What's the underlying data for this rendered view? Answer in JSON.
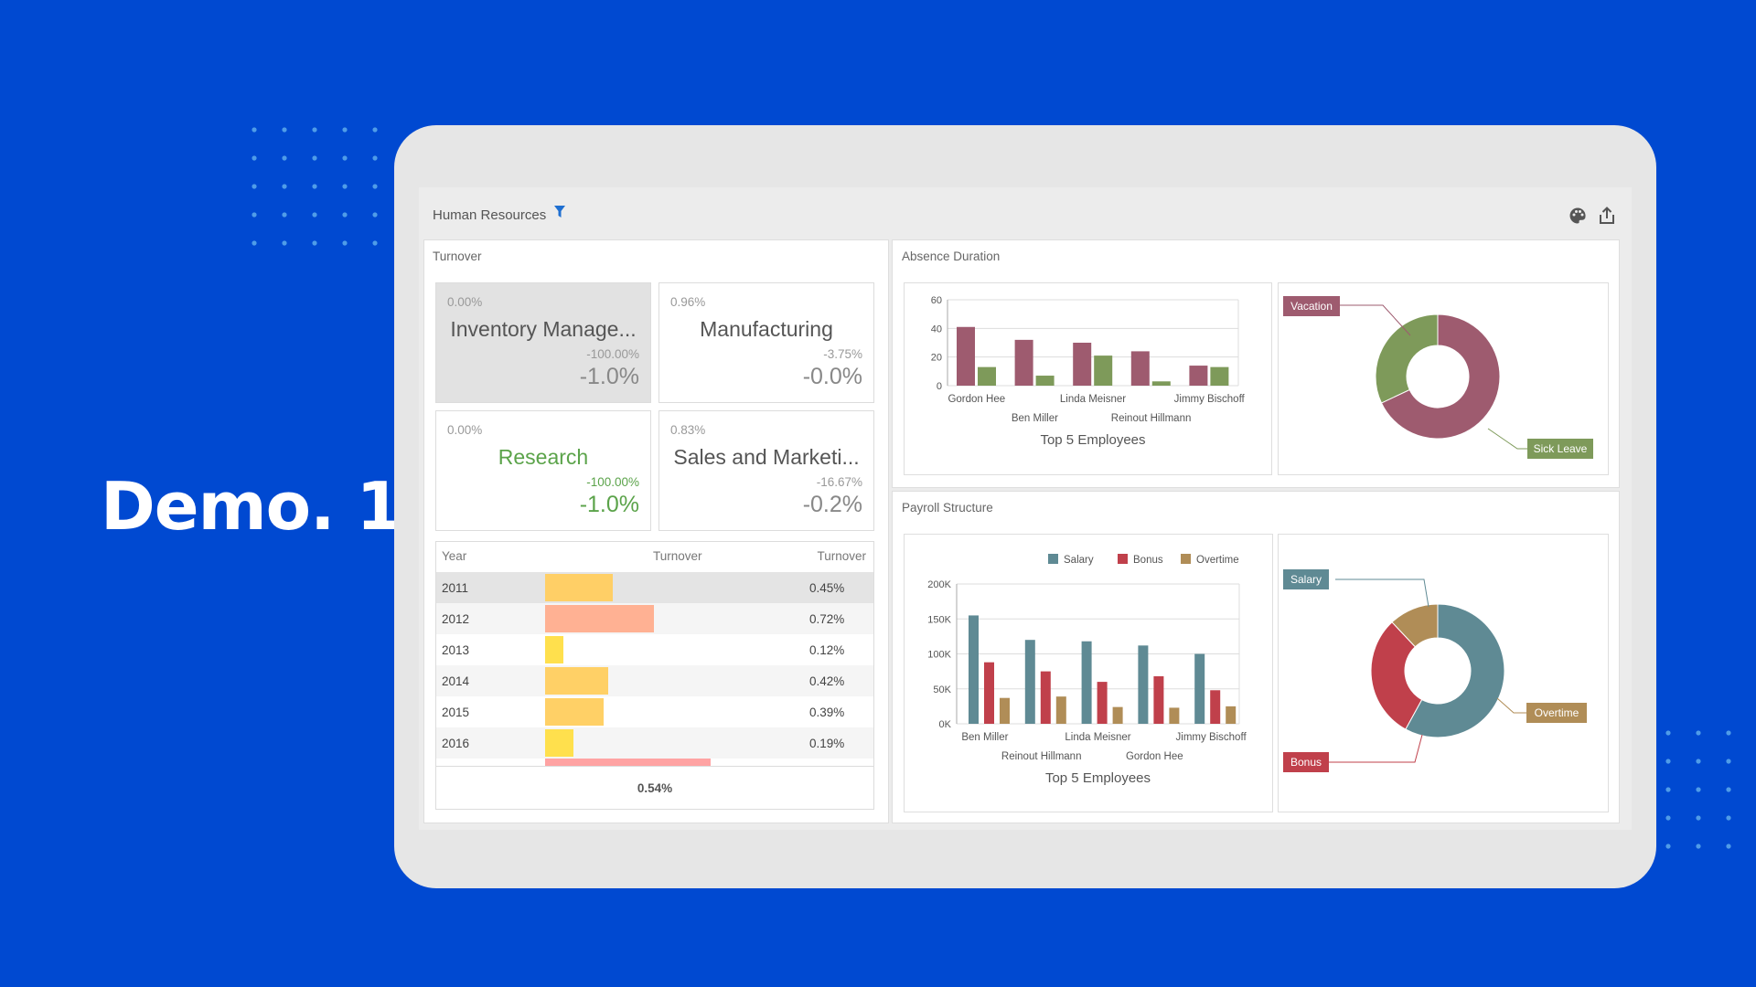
{
  "banner": {
    "title": "Demo. 1"
  },
  "dashboard": {
    "title": "Human Resources",
    "icons": {
      "filter": "filter-icon",
      "palette": "palette-icon",
      "export": "export-icon"
    },
    "turnover": {
      "title": "Turnover",
      "cards": [
        {
          "top": "0.00%",
          "name": "Inventory Manage...",
          "sub": "-100.00%",
          "big": "-1.0%",
          "selected": true,
          "accent": "#555555"
        },
        {
          "top": "0.96%",
          "name": "Manufacturing",
          "sub": "-3.75%",
          "big": "-0.0%",
          "selected": false,
          "accent": "#555555"
        },
        {
          "top": "0.00%",
          "name": "Research",
          "sub": "-100.00%",
          "big": "-1.0%",
          "selected": false,
          "accent": "#5ba34a"
        },
        {
          "top": "0.83%",
          "name": "Sales and Marketi...",
          "sub": "-16.67%",
          "big": "-0.2%",
          "selected": false,
          "accent": "#555555"
        }
      ],
      "grid": {
        "headers": [
          "Year",
          "Turnover",
          "Turnover"
        ],
        "rows": [
          {
            "year": "2011",
            "value": "0.45%",
            "bar": 0.45,
            "color": "#ffcf66"
          },
          {
            "year": "2012",
            "value": "0.72%",
            "bar": 0.72,
            "color": "#ffb193"
          },
          {
            "year": "2013",
            "value": "0.12%",
            "bar": 0.12,
            "color": "#ffe04d"
          },
          {
            "year": "2014",
            "value": "0.42%",
            "bar": 0.42,
            "color": "#ffd066"
          },
          {
            "year": "2015",
            "value": "0.39%",
            "bar": 0.39,
            "color": "#ffd066"
          },
          {
            "year": "2016",
            "value": "0.19%",
            "bar": 0.19,
            "color": "#ffe04d"
          }
        ],
        "total": "0.54%"
      }
    },
    "absence": {
      "title": "Absence Duration"
    },
    "payroll": {
      "title": "Payroll Structure"
    }
  },
  "chart_data": [
    {
      "type": "bar",
      "title": "Top 5 Employees",
      "categories": [
        "Gordon Hee",
        "Ben Miller",
        "Linda Meisner",
        "Reinout Hillmann",
        "Jimmy Bischoff"
      ],
      "series": [
        {
          "values": [
            41,
            32,
            30,
            24,
            14
          ],
          "color": "#9e5b6f"
        },
        {
          "values": [
            13,
            7,
            21,
            3,
            13
          ],
          "color": "#7e9a5a"
        }
      ],
      "ylim": [
        0,
        60
      ],
      "yticks": [
        "0",
        "20",
        "40",
        "60"
      ],
      "grid": true
    },
    {
      "type": "pie",
      "donut": true,
      "slices": [
        {
          "label": "Vacation",
          "value": 68,
          "color": "#9e5b6f"
        },
        {
          "label": "Sick Leave",
          "value": 32,
          "color": "#7e9a5a"
        }
      ]
    },
    {
      "type": "bar",
      "title": "Top 5 Employees",
      "categories": [
        "Ben Miller",
        "Reinout Hillmann",
        "Linda Meisner",
        "Gordon Hee",
        "Jimmy Bischoff"
      ],
      "series": [
        {
          "name": "Salary",
          "values": [
            155000,
            120000,
            118000,
            112000,
            100000
          ],
          "color": "#5f8a94"
        },
        {
          "name": "Bonus",
          "values": [
            88000,
            75000,
            60000,
            68000,
            48000
          ],
          "color": "#c0404b"
        },
        {
          "name": "Overtime",
          "values": [
            37000,
            39000,
            24000,
            23000,
            25000
          ],
          "color": "#b08d57"
        }
      ],
      "ylim": [
        0,
        200000
      ],
      "yticks": [
        "0K",
        "50K",
        "100K",
        "150K",
        "200K"
      ],
      "legend": "top",
      "grid": true
    },
    {
      "type": "pie",
      "donut": true,
      "slices": [
        {
          "label": "Salary",
          "value": 58,
          "color": "#5f8a94"
        },
        {
          "label": "Bonus",
          "value": 30,
          "color": "#c0404b"
        },
        {
          "label": "Overtime",
          "value": 12,
          "color": "#b08d57"
        }
      ]
    }
  ]
}
